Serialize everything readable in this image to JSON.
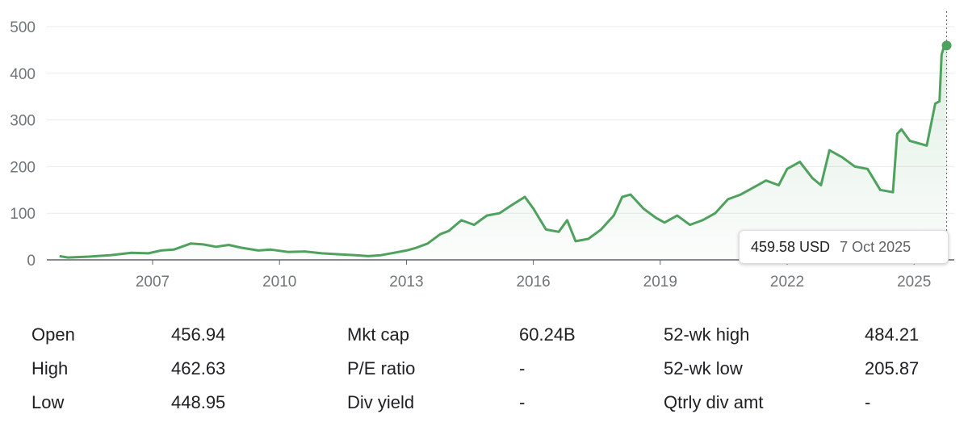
{
  "chart_data": {
    "type": "area",
    "y_ticks": [
      "500",
      "400",
      "300",
      "200",
      "100",
      "0"
    ],
    "x_ticks": [
      "2007",
      "2010",
      "2013",
      "2016",
      "2019",
      "2022",
      "2025"
    ],
    "ylim": [
      0,
      500
    ],
    "xlim": [
      2004.5,
      2025.95
    ],
    "grid": true,
    "line_color": "#4fa15e",
    "series": [
      {
        "x": [
          2004.8,
          2005.0,
          2005.5,
          2006.0,
          2006.5,
          2006.9,
          2007.2,
          2007.5,
          2007.9,
          2008.2,
          2008.5,
          2008.8,
          2009.1,
          2009.5,
          2009.8,
          2010.2,
          2010.6,
          2011.0,
          2011.4,
          2011.8,
          2012.1,
          2012.4,
          2012.7,
          2013.0,
          2013.2,
          2013.5,
          2013.8,
          2014.0,
          2014.3,
          2014.6,
          2014.9,
          2015.2,
          2015.5,
          2015.8,
          2016.0,
          2016.3,
          2016.6,
          2016.8,
          2017.0,
          2017.3,
          2017.6,
          2017.9,
          2018.1,
          2018.3,
          2018.6,
          2018.9,
          2019.1,
          2019.4,
          2019.7,
          2020.0,
          2020.3,
          2020.6,
          2020.9,
          2021.2,
          2021.5,
          2021.8,
          2022.0,
          2022.3,
          2022.6,
          2022.8,
          2023.0,
          2023.3,
          2023.6,
          2023.9,
          2024.2,
          2024.5,
          2024.6,
          2024.7,
          2024.9,
          2025.1,
          2025.3,
          2025.5,
          2025.6,
          2025.65,
          2025.7,
          2025.77
        ],
        "y": [
          8,
          5,
          7,
          10,
          15,
          14,
          20,
          22,
          35,
          33,
          28,
          32,
          26,
          20,
          22,
          17,
          18,
          14,
          12,
          10,
          8,
          10,
          15,
          20,
          25,
          35,
          55,
          62,
          85,
          75,
          95,
          100,
          118,
          135,
          110,
          65,
          60,
          85,
          40,
          45,
          65,
          95,
          135,
          140,
          110,
          90,
          80,
          95,
          75,
          85,
          100,
          130,
          140,
          155,
          170,
          160,
          195,
          210,
          175,
          160,
          235,
          220,
          200,
          195,
          150,
          145,
          270,
          280,
          255,
          250,
          245,
          335,
          340,
          440,
          455,
          459.58
        ]
      }
    ]
  },
  "tooltip": {
    "price": "459.58 USD",
    "date": "7 Oct 2025"
  },
  "stats": {
    "rows": [
      {
        "l1": "Open",
        "v1": "456.94",
        "l2": "Mkt cap",
        "v2": "60.24B",
        "l3": "52-wk high",
        "v3": "484.21"
      },
      {
        "l1": "High",
        "v1": "462.63",
        "l2": "P/E ratio",
        "v2": "-",
        "l3": "52-wk low",
        "v3": "205.87"
      },
      {
        "l1": "Low",
        "v1": "448.95",
        "l2": "Div yield",
        "v2": "-",
        "l3": "Qtrly div amt",
        "v3": "-"
      }
    ]
  }
}
